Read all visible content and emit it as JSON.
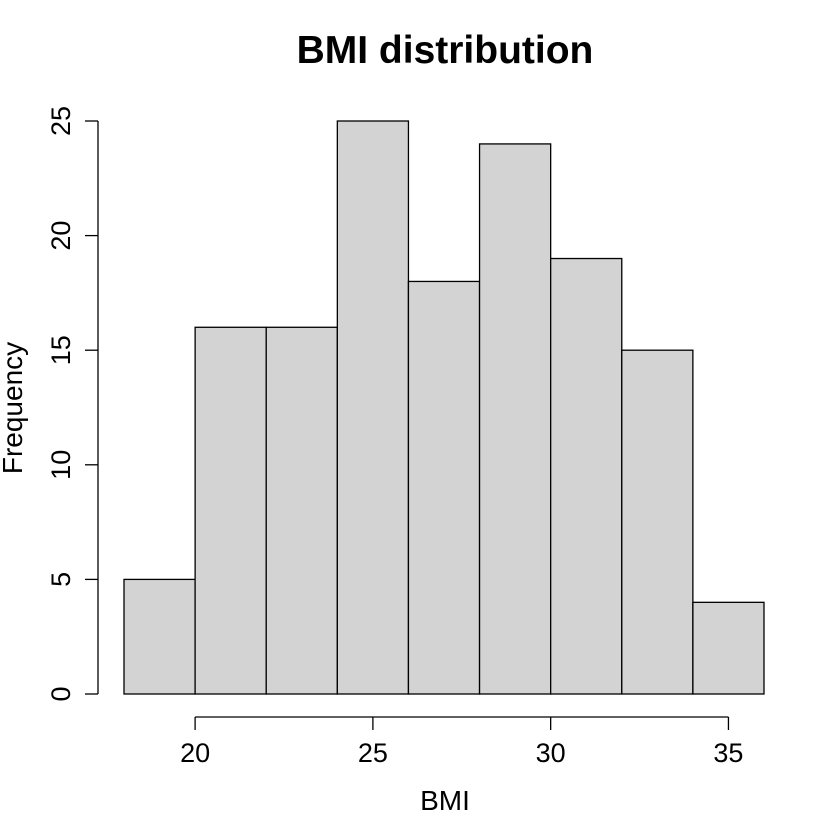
{
  "chart_data": {
    "type": "bar",
    "title": "BMI distribution",
    "xlabel": "BMI",
    "ylabel": "Frequency",
    "bin_edges": [
      18,
      20,
      22,
      24,
      26,
      28,
      30,
      32,
      34,
      36
    ],
    "values": [
      5,
      16,
      16,
      25,
      18,
      24,
      19,
      15,
      4
    ],
    "xlim": [
      18,
      36
    ],
    "ylim": [
      0,
      25
    ],
    "x_ticks": [
      20,
      25,
      30,
      35
    ],
    "y_ticks": [
      0,
      5,
      10,
      15,
      20,
      25
    ],
    "bar_color": "#d3d3d3",
    "grid": false,
    "legend": "none"
  }
}
